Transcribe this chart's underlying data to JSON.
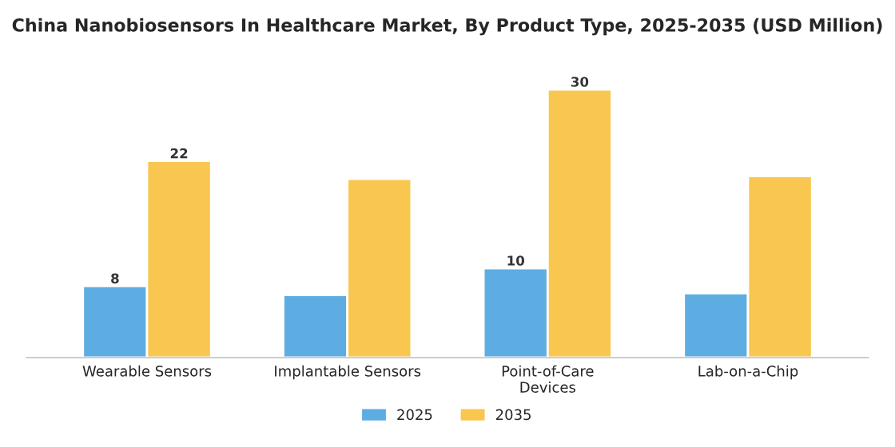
{
  "chart_data": {
    "type": "bar",
    "title": "China Nanobiosensors In Healthcare Market, By Product Type, 2025-2035 (USD Million)",
    "categories": [
      "Wearable Sensors",
      "Implantable Sensors",
      "Point-of-Care\nDevices",
      "Lab-on-a-Chip"
    ],
    "series": [
      {
        "name": "2025",
        "color": "#5dade2",
        "values": [
          8,
          7,
          10,
          7.2
        ],
        "value_labels": [
          "8",
          null,
          "10",
          null
        ]
      },
      {
        "name": "2035",
        "color": "#f9c74f",
        "values": [
          22,
          20,
          30,
          20.3
        ],
        "value_labels": [
          "22",
          null,
          "30",
          null
        ]
      }
    ],
    "legend": "bottom",
    "grid": false
  }
}
